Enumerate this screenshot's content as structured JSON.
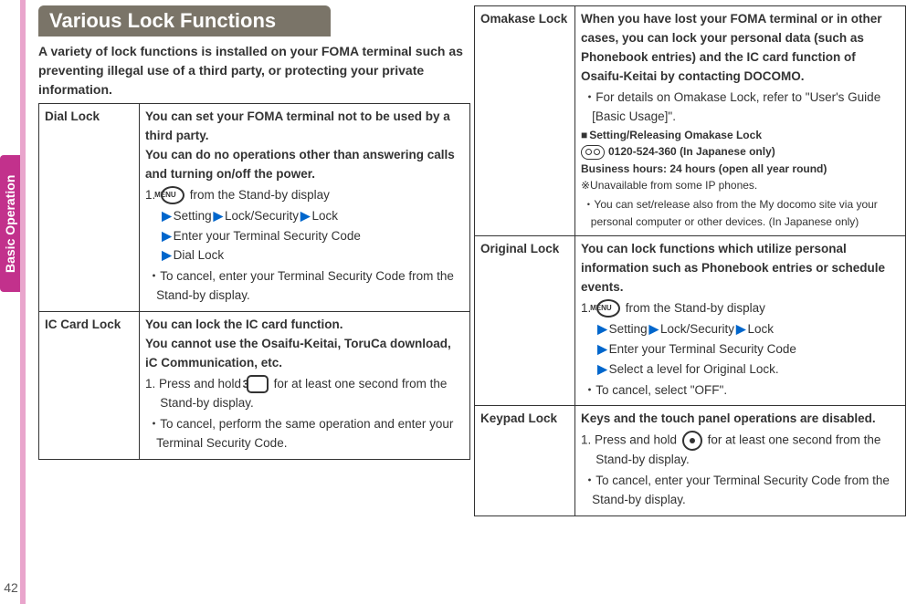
{
  "side_tab": "Basic Operation",
  "page_number": "42",
  "section_title": "Various Lock Functions",
  "intro": "A variety of lock functions is installed on your FOMA terminal such as preventing illegal use of a third party, or protecting your private information.",
  "menu_label": "MENU",
  "key3_label": "3",
  "left": {
    "dial": {
      "name": "Dial Lock",
      "desc1": "You can set your FOMA terminal not to be used by a third party.",
      "desc2": "You can do no operations other than answering calls and turning on/off the power.",
      "step_prefix": "1. ",
      "step_tail": " from the Stand-by display",
      "p1": "Setting",
      "p2": "Lock/Security",
      "p3": "Lock",
      "p4": "Enter your Terminal Security Code",
      "p5": "Dial Lock",
      "note": "To cancel, enter your Terminal Security Code from the Stand-by display."
    },
    "ic": {
      "name": "IC Card Lock",
      "desc1": "You can lock the IC card function.",
      "desc2": "You cannot use the Osaifu-Keitai, ToruCa download, iC Communication, etc.",
      "step_a": "1. Press and hold ",
      "step_b": " for at least one second from the Stand-by display.",
      "note": "To cancel, perform the same operation and enter your Terminal Security Code."
    }
  },
  "right": {
    "omakase": {
      "name": "Omakase Lock",
      "desc": "When you have lost your FOMA terminal or in other cases, you can lock your personal data (such as Phonebook entries) and the IC card function of Osaifu-Keitai by contacting DOCOMO.",
      "note1": "For details on Omakase Lock, refer to \"User's Guide [Basic Usage]\".",
      "setrel_label": "Setting/Releasing Omakase Lock",
      "phone": "0120-524-360 (In Japanese only)",
      "hours": "Business hours: 24 hours (open all year round)",
      "ip": "※Unavailable from some IP phones.",
      "note2": "You can set/release also from the My docomo site via your personal computer or other devices. (In Japanese only)"
    },
    "original": {
      "name": "Original Lock",
      "desc": "You can lock functions which utilize personal information such as Phonebook entries or schedule events.",
      "step_prefix": "1. ",
      "step_tail": " from the Stand-by display",
      "p1": "Setting",
      "p2": "Lock/Security",
      "p3": "Lock",
      "p4": "Enter your Terminal Security Code",
      "p5": "Select a level for Original Lock.",
      "note": "To cancel, select \"OFF\"."
    },
    "keypad": {
      "name": "Keypad Lock",
      "desc": "Keys and the touch panel operations are disabled.",
      "step_a": "1. Press and hold ",
      "step_b": " for at least one second from the Stand-by display.",
      "note": "To cancel, enter your Terminal Security Code from the Stand-by display."
    }
  }
}
